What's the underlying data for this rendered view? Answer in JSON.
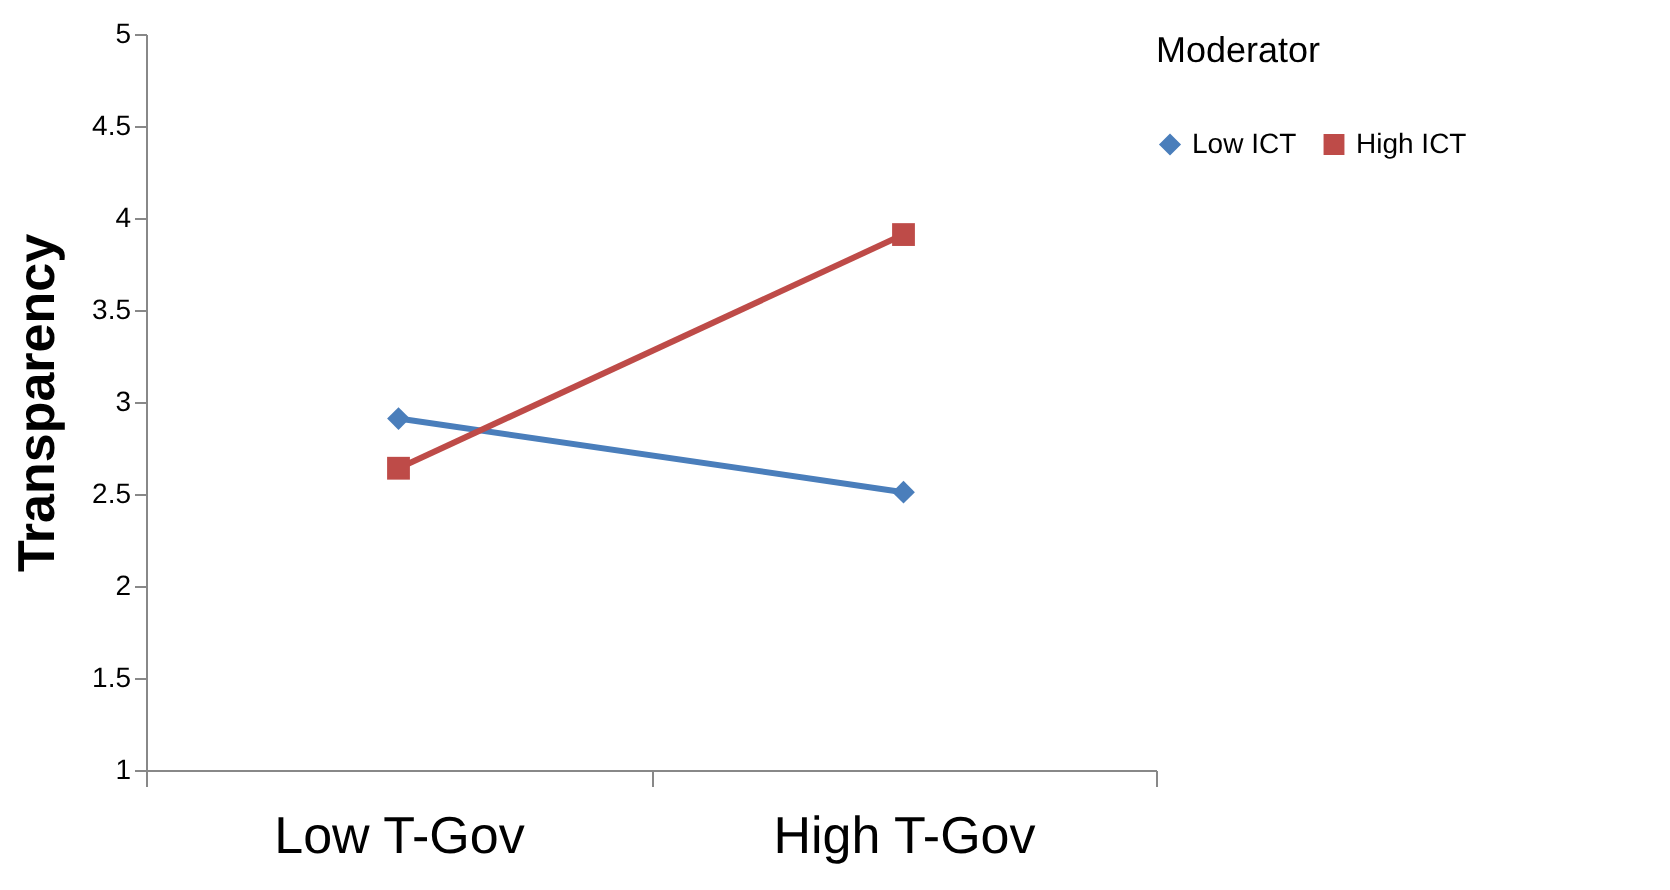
{
  "chart_data": {
    "type": "line",
    "ylabel": "Transparency",
    "legend_title": "Moderator",
    "categories": [
      "Low T-Gov",
      "High T-Gov"
    ],
    "series": [
      {
        "name": "Low ICT",
        "color": "#4a7ebb",
        "marker": "diamond",
        "values": [
          2.91,
          2.51
        ]
      },
      {
        "name": "High ICT",
        "color": "#be4b48",
        "marker": "square",
        "values": [
          2.64,
          3.91
        ]
      }
    ],
    "ylim": [
      1,
      5
    ],
    "yticks": [
      1,
      1.5,
      2,
      2.5,
      3,
      3.5,
      4,
      4.5,
      5
    ],
    "grid": false,
    "legend": "right"
  }
}
